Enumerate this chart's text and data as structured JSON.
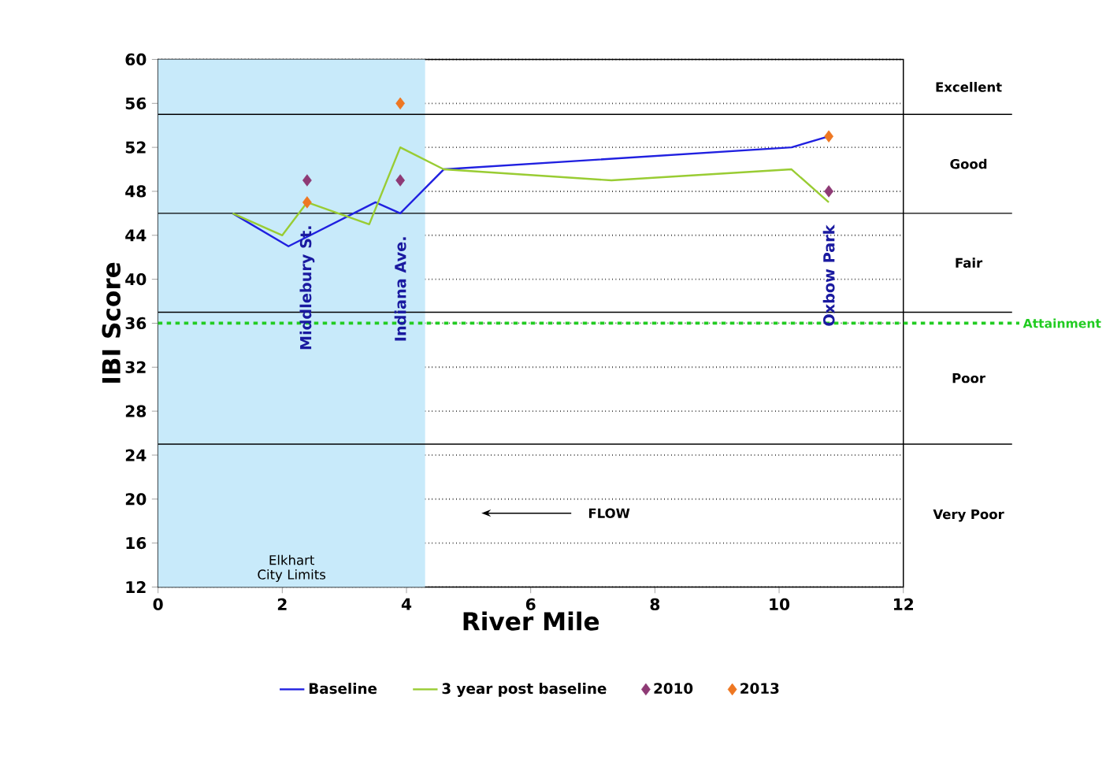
{
  "chart_data": {
    "type": "line",
    "xlabel": "River Mile",
    "ylabel": "IBI Score",
    "xlim": [
      0,
      12
    ],
    "xticks": [
      0,
      2,
      4,
      6,
      8,
      10,
      12
    ],
    "ylim": [
      12,
      60
    ],
    "yticks": [
      12,
      16,
      20,
      24,
      28,
      32,
      36,
      40,
      44,
      48,
      52,
      56,
      60
    ],
    "grid": "y",
    "legend": "bottom",
    "marker": "none",
    "line_style": "solid",
    "series": [
      {
        "name": "Baseline",
        "color": "#2020e0",
        "x": [
          1.2,
          2.1,
          3.5,
          3.9,
          4.6,
          10.2,
          10.8
        ],
        "values": [
          46,
          43,
          47,
          46,
          50,
          52,
          53
        ]
      },
      {
        "name": "3 year post baseline",
        "color": "#99cc33",
        "x": [
          1.2,
          2.0,
          2.4,
          3.4,
          3.9,
          4.6,
          7.3,
          10.2,
          10.8
        ],
        "values": [
          46,
          44,
          47,
          45,
          52,
          50,
          49,
          50,
          47
        ]
      },
      {
        "name": "2010",
        "type": "scatter",
        "marker": "diamond",
        "color": "#8e3a75",
        "x": [
          2.4,
          3.9,
          10.8
        ],
        "values": [
          49,
          49,
          48
        ]
      },
      {
        "name": "2013",
        "type": "scatter",
        "marker": "diamond",
        "color": "#ee7722",
        "x": [
          2.4,
          3.9,
          10.8
        ],
        "values": [
          47,
          56,
          53
        ]
      }
    ],
    "ref_lines": [
      {
        "axis": "y",
        "value": 55,
        "color": "#000000",
        "line_style": "solid"
      },
      {
        "axis": "y",
        "value": 46,
        "color": "#000000",
        "line_style": "solid"
      },
      {
        "axis": "y",
        "value": 37,
        "color": "#000000",
        "line_style": "solid"
      },
      {
        "axis": "y",
        "value": 25,
        "color": "#000000",
        "line_style": "solid"
      },
      {
        "axis": "y",
        "value": 36,
        "color": "#22cc22",
        "line_style": "dashed",
        "label": "Attainment"
      }
    ],
    "bands": [
      {
        "axis": "x",
        "from": 0,
        "to": 4.3,
        "label": "Elkhart City Limits",
        "color": "#c8eafa"
      }
    ],
    "annotations": [
      "FLOW",
      "Middlebury St.",
      "Indiana Ave.",
      "Oxbow Park",
      "Excellent",
      "Good",
      "Fair",
      "Poor",
      "Very Poor"
    ]
  }
}
